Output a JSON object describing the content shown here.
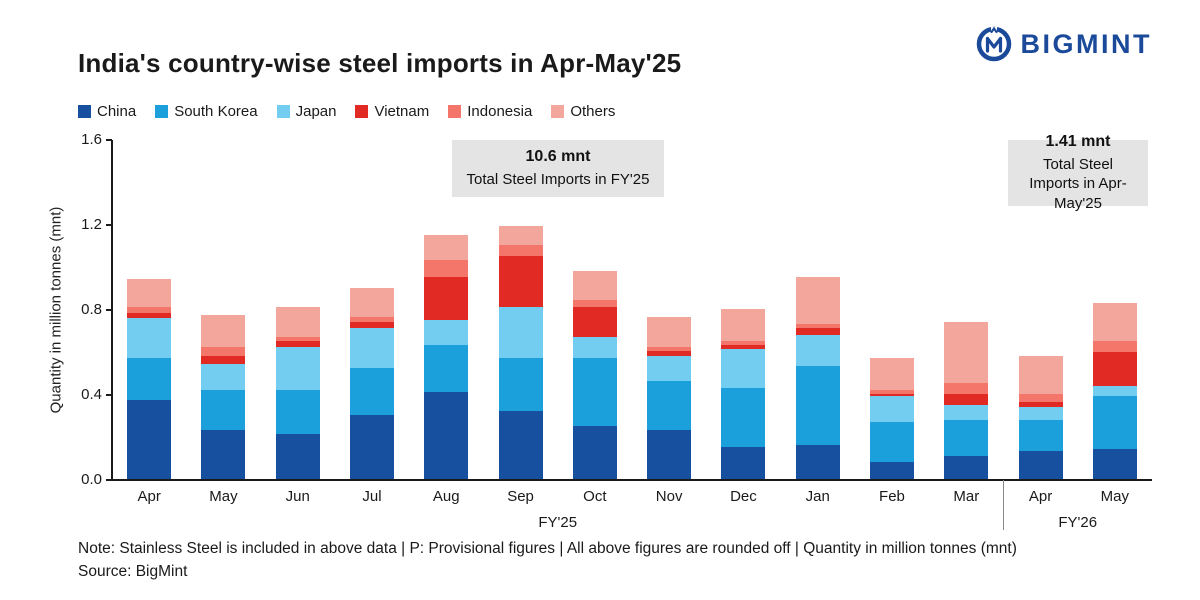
{
  "header": {
    "title": "India's country-wise steel imports in Apr-May'25",
    "brand": "BIGMINT"
  },
  "chart_data": {
    "type": "bar",
    "stacked": true,
    "title": "India's country-wise steel imports in Apr-May'25",
    "ylabel": "Quantity in million tonnes (mnt)",
    "xlabel": "",
    "ylim": [
      0,
      1.6
    ],
    "yticks": [
      0.0,
      0.4,
      0.8,
      1.2,
      1.6
    ],
    "grid": false,
    "legend_position": "top-left",
    "categories": [
      "Apr",
      "May",
      "Jun",
      "Jul",
      "Aug",
      "Sep",
      "Oct",
      "Nov",
      "Dec",
      "Jan",
      "Feb",
      "Mar",
      "Apr",
      "May"
    ],
    "group_labels": [
      {
        "label": "FY'25",
        "span": [
          0,
          11
        ]
      },
      {
        "label": "FY'26",
        "span": [
          12,
          13
        ]
      }
    ],
    "series": [
      {
        "name": "China",
        "color": "#17509e",
        "values": [
          0.37,
          0.23,
          0.21,
          0.3,
          0.41,
          0.32,
          0.25,
          0.23,
          0.15,
          0.16,
          0.08,
          0.11,
          0.13,
          0.14
        ]
      },
      {
        "name": "South Korea",
        "color": "#1ba0dc",
        "values": [
          0.2,
          0.19,
          0.21,
          0.22,
          0.22,
          0.25,
          0.32,
          0.23,
          0.28,
          0.37,
          0.19,
          0.17,
          0.15,
          0.25
        ]
      },
      {
        "name": "Japan",
        "color": "#72cdf0",
        "values": [
          0.19,
          0.12,
          0.2,
          0.19,
          0.12,
          0.24,
          0.1,
          0.12,
          0.18,
          0.15,
          0.12,
          0.07,
          0.06,
          0.05
        ]
      },
      {
        "name": "Vietnam",
        "color": "#e22a25",
        "values": [
          0.02,
          0.04,
          0.03,
          0.03,
          0.2,
          0.24,
          0.14,
          0.02,
          0.02,
          0.03,
          0.01,
          0.05,
          0.02,
          0.16
        ]
      },
      {
        "name": "Indonesia",
        "color": "#f4756a",
        "values": [
          0.03,
          0.04,
          0.02,
          0.02,
          0.08,
          0.05,
          0.03,
          0.02,
          0.02,
          0.02,
          0.02,
          0.05,
          0.04,
          0.05
        ]
      },
      {
        "name": "Others",
        "color": "#f2a69c",
        "values": [
          0.13,
          0.15,
          0.14,
          0.14,
          0.12,
          0.09,
          0.14,
          0.14,
          0.15,
          0.22,
          0.15,
          0.29,
          0.18,
          0.18
        ]
      }
    ],
    "annotations": [
      {
        "bold": "10.6 mnt",
        "text": "Total Steel Imports in FY'25"
      },
      {
        "bold": "1.41 mnt",
        "text": "Total Steel Imports in Apr-May'25"
      }
    ]
  },
  "footer": {
    "note": "Note: Stainless Steel is included in above data | P: Provisional figures | All above figures are rounded off | Quantity in million tonnes (mnt)",
    "source": "Source: BigMint"
  }
}
